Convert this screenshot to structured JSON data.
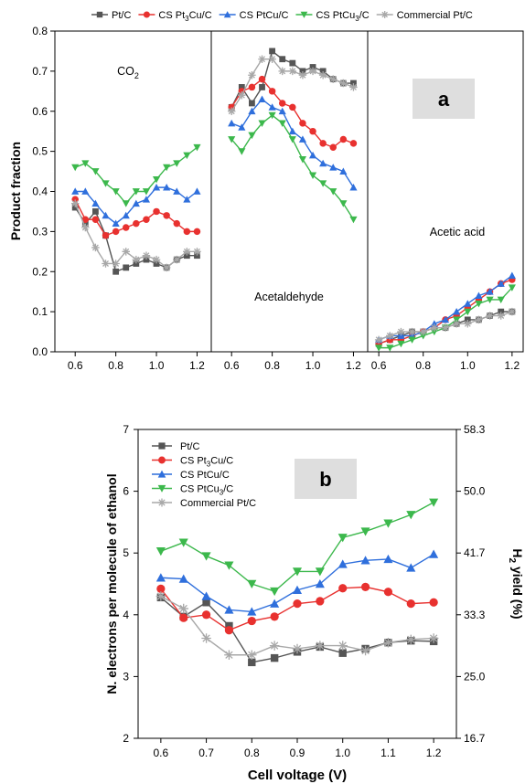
{
  "colors": {
    "Pt/C": "#555555",
    "CS Pt3Cu/C": "#e8312f",
    "CS PtCu/C": "#2f6fdc",
    "CS PtCu3/C": "#3cb84c",
    "Commercial Pt/C": "#a8a8a8",
    "badge_bg": "#dedede"
  },
  "chart_data": [
    {
      "type": "line",
      "panel_label": "a",
      "ylabel": "Product fraction",
      "ylim": [
        0,
        0.8
      ],
      "yticks": [
        "0.0",
        "0.1",
        "0.2",
        "0.3",
        "0.4",
        "0.5",
        "0.6",
        "0.7",
        "0.8"
      ],
      "legend": {
        "placement": "top-outside",
        "entries": [
          {
            "key": "Pt/C",
            "label": "Pt/C"
          },
          {
            "key": "CS Pt3Cu/C",
            "label": "CS Pt",
            "sub": "3",
            "after": "Cu/C"
          },
          {
            "key": "CS PtCu/C",
            "label": "CS PtCu/C"
          },
          {
            "key": "CS PtCu3/C",
            "label": "CS PtCu",
            "sub": "3",
            "after": "/C"
          },
          {
            "key": "Commercial Pt/C",
            "label": "Commercial Pt/C"
          }
        ]
      },
      "subpanels": [
        {
          "annotation": {
            "text": "CO",
            "sub": "2"
          },
          "xlim": [
            0.5,
            1.27
          ],
          "xticks": [
            "0.6",
            "0.8",
            "1.0",
            "1.2"
          ],
          "x": [
            0.6,
            0.65,
            0.7,
            0.75,
            0.8,
            0.85,
            0.9,
            0.95,
            1.0,
            1.05,
            1.1,
            1.15,
            1.2
          ],
          "series": [
            {
              "key": "Pt/C",
              "marker": "square",
              "values": [
                0.36,
                0.32,
                0.35,
                0.29,
                0.2,
                0.21,
                0.22,
                0.23,
                0.22,
                0.21,
                0.23,
                0.24,
                0.24
              ]
            },
            {
              "key": "CS Pt3Cu/C",
              "marker": "circle",
              "values": [
                0.38,
                0.33,
                0.33,
                0.29,
                0.3,
                0.31,
                0.32,
                0.33,
                0.35,
                0.34,
                0.32,
                0.3,
                0.3
              ]
            },
            {
              "key": "CS PtCu/C",
              "marker": "triangle-up",
              "values": [
                0.4,
                0.4,
                0.37,
                0.34,
                0.32,
                0.34,
                0.37,
                0.38,
                0.41,
                0.41,
                0.4,
                0.38,
                0.4
              ]
            },
            {
              "key": "CS PtCu3/C",
              "marker": "triangle-down",
              "values": [
                0.46,
                0.47,
                0.45,
                0.42,
                0.4,
                0.37,
                0.4,
                0.4,
                0.43,
                0.46,
                0.47,
                0.49,
                0.51
              ]
            },
            {
              "key": "Commercial Pt/C",
              "marker": "star",
              "values": [
                0.37,
                0.31,
                0.26,
                0.22,
                0.22,
                0.25,
                0.23,
                0.24,
                0.23,
                0.21,
                0.23,
                0.25,
                0.25
              ]
            }
          ]
        },
        {
          "annotation": {
            "text": "Acetaldehyde"
          },
          "xlim": [
            0.5,
            1.27
          ],
          "xticks": [
            "0.6",
            "0.8",
            "1.0",
            "1.2"
          ],
          "x": [
            0.6,
            0.65,
            0.7,
            0.75,
            0.8,
            0.85,
            0.9,
            0.95,
            1.0,
            1.05,
            1.1,
            1.15,
            1.2
          ],
          "series": [
            {
              "key": "Pt/C",
              "marker": "square",
              "values": [
                0.61,
                0.66,
                0.62,
                0.66,
                0.75,
                0.73,
                0.72,
                0.7,
                0.71,
                0.7,
                0.68,
                0.67,
                0.67
              ]
            },
            {
              "key": "CS Pt3Cu/C",
              "marker": "circle",
              "values": [
                0.61,
                0.65,
                0.66,
                0.68,
                0.65,
                0.62,
                0.61,
                0.57,
                0.55,
                0.52,
                0.51,
                0.53,
                0.52
              ]
            },
            {
              "key": "CS PtCu/C",
              "marker": "triangle-up",
              "values": [
                0.57,
                0.56,
                0.6,
                0.63,
                0.61,
                0.6,
                0.55,
                0.53,
                0.49,
                0.47,
                0.46,
                0.45,
                0.41
              ]
            },
            {
              "key": "CS PtCu3/C",
              "marker": "triangle-down",
              "values": [
                0.53,
                0.5,
                0.54,
                0.57,
                0.59,
                0.57,
                0.53,
                0.48,
                0.44,
                0.42,
                0.4,
                0.37,
                0.33
              ]
            },
            {
              "key": "Commercial Pt/C",
              "marker": "star",
              "values": [
                0.6,
                0.64,
                0.69,
                0.73,
                0.73,
                0.7,
                0.7,
                0.69,
                0.7,
                0.69,
                0.68,
                0.67,
                0.66
              ]
            }
          ]
        },
        {
          "annotation": {
            "text": "Acetic acid"
          },
          "xlim": [
            0.55,
            1.25
          ],
          "xticks": [
            "0.6",
            "0.8",
            "1.0",
            "1.2"
          ],
          "x": [
            0.6,
            0.65,
            0.7,
            0.75,
            0.8,
            0.85,
            0.9,
            0.95,
            1.0,
            1.05,
            1.1,
            1.15,
            1.2
          ],
          "series": [
            {
              "key": "Pt/C",
              "marker": "square",
              "values": [
                0.02,
                0.03,
                0.04,
                0.05,
                0.05,
                0.06,
                0.06,
                0.07,
                0.08,
                0.08,
                0.09,
                0.1,
                0.1
              ]
            },
            {
              "key": "CS Pt3Cu/C",
              "marker": "circle",
              "values": [
                0.02,
                0.03,
                0.03,
                0.04,
                0.05,
                0.06,
                0.08,
                0.09,
                0.11,
                0.13,
                0.15,
                0.17,
                0.18
              ]
            },
            {
              "key": "CS PtCu/C",
              "marker": "triangle-up",
              "values": [
                0.03,
                0.04,
                0.04,
                0.04,
                0.05,
                0.07,
                0.08,
                0.1,
                0.12,
                0.14,
                0.15,
                0.17,
                0.19
              ]
            },
            {
              "key": "CS PtCu3/C",
              "marker": "triangle-down",
              "values": [
                0.01,
                0.01,
                0.02,
                0.03,
                0.04,
                0.05,
                0.06,
                0.08,
                0.1,
                0.12,
                0.13,
                0.13,
                0.16
              ]
            },
            {
              "key": "Commercial Pt/C",
              "marker": "star",
              "values": [
                0.03,
                0.04,
                0.05,
                0.05,
                0.05,
                0.06,
                0.06,
                0.07,
                0.07,
                0.08,
                0.09,
                0.09,
                0.1
              ]
            }
          ]
        }
      ]
    },
    {
      "type": "line",
      "panel_label": "b",
      "xlabel": "Cell voltage (V)",
      "ylabel": "N. electrons per molecule of ethanol",
      "ylabel_right": {
        "text": "H",
        "sub": "2",
        "after": " yield (%)"
      },
      "xlim": [
        0.55,
        1.25
      ],
      "ylim": [
        2,
        7
      ],
      "xticks": [
        "0.6",
        "0.7",
        "0.8",
        "0.9",
        "1.0",
        "1.1",
        "1.2"
      ],
      "yticks": [
        "2",
        "3",
        "4",
        "5",
        "6",
        "7"
      ],
      "yticks_right": [
        "16.7",
        "25.0",
        "33.3",
        "41.7",
        "50.0",
        "58.3"
      ],
      "legend": {
        "placement": "top-left",
        "entries": [
          {
            "key": "Pt/C",
            "label": "Pt/C"
          },
          {
            "key": "CS Pt3Cu/C",
            "label": "CS Pt",
            "sub": "3",
            "after": "Cu/C"
          },
          {
            "key": "CS PtCu/C",
            "label": "CS PtCu/C"
          },
          {
            "key": "CS PtCu3/C",
            "label": "CS PtCu",
            "sub": "3",
            "after": "/C"
          },
          {
            "key": "Commercial Pt/C",
            "label": "Commercial Pt/C"
          }
        ]
      },
      "x": [
        0.6,
        0.65,
        0.7,
        0.75,
        0.8,
        0.85,
        0.9,
        0.95,
        1.0,
        1.05,
        1.1,
        1.15,
        1.2
      ],
      "series": [
        {
          "key": "Pt/C",
          "marker": "square",
          "values": [
            4.28,
            3.97,
            4.2,
            3.82,
            3.23,
            3.3,
            3.4,
            3.48,
            3.38,
            3.45,
            3.55,
            3.58,
            3.57
          ]
        },
        {
          "key": "CS Pt3Cu/C",
          "marker": "circle",
          "values": [
            4.42,
            3.95,
            4.0,
            3.75,
            3.9,
            3.97,
            4.18,
            4.22,
            4.43,
            4.45,
            4.37,
            4.18,
            4.2
          ]
        },
        {
          "key": "CS PtCu/C",
          "marker": "triangle-up",
          "values": [
            4.6,
            4.58,
            4.3,
            4.08,
            4.05,
            4.18,
            4.4,
            4.5,
            4.82,
            4.88,
            4.9,
            4.76,
            4.98
          ]
        },
        {
          "key": "CS PtCu3/C",
          "marker": "triangle-down",
          "values": [
            5.03,
            5.17,
            4.95,
            4.8,
            4.5,
            4.38,
            4.7,
            4.7,
            5.25,
            5.35,
            5.48,
            5.62,
            5.82
          ]
        },
        {
          "key": "Commercial Pt/C",
          "marker": "star",
          "values": [
            4.3,
            4.1,
            3.62,
            3.35,
            3.35,
            3.5,
            3.45,
            3.5,
            3.5,
            3.42,
            3.55,
            3.6,
            3.62
          ]
        }
      ]
    }
  ]
}
